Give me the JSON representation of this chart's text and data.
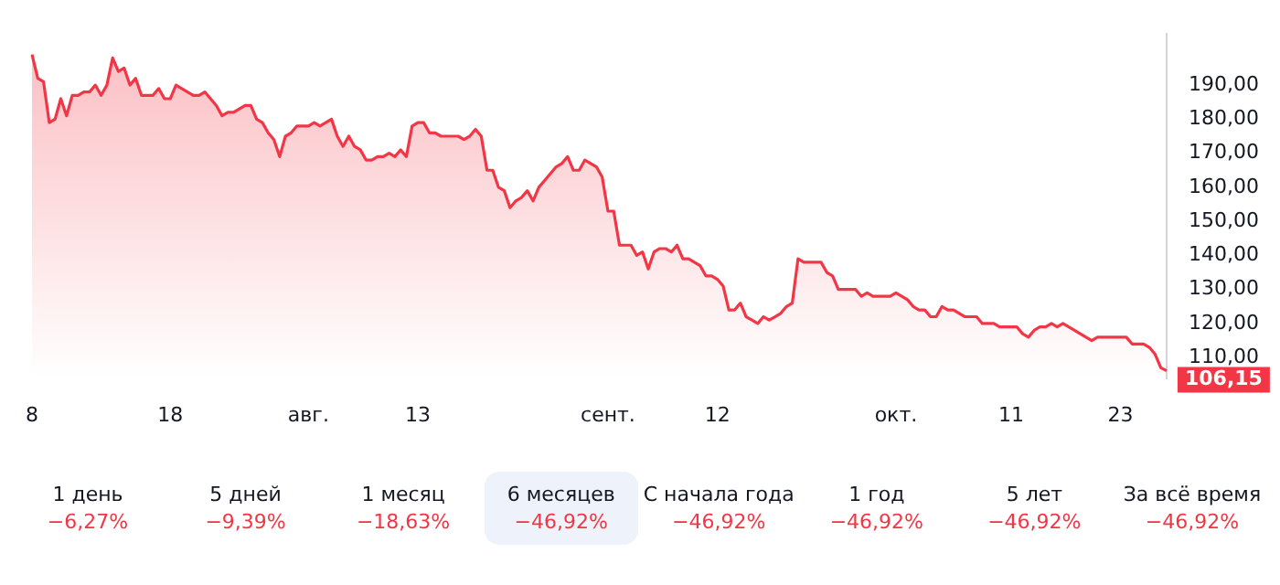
{
  "chart_data": {
    "type": "area",
    "categories": [
      "8",
      null,
      null,
      null,
      null,
      null,
      null,
      null,
      null,
      null,
      null,
      null,
      null,
      null,
      null,
      null,
      null,
      null,
      null,
      null,
      null,
      null,
      null,
      null,
      "18",
      null,
      null,
      null,
      null,
      null,
      null,
      null,
      null,
      null,
      null,
      null,
      null,
      null,
      null,
      null,
      null,
      null,
      null,
      null,
      null,
      null,
      null,
      null,
      "авг.",
      null,
      null,
      null,
      null,
      null,
      null,
      null,
      null,
      null,
      null,
      null,
      null,
      null,
      null,
      null,
      null,
      null,
      null,
      "13",
      null,
      null,
      null,
      null,
      null,
      null,
      null,
      null,
      null,
      null,
      null,
      null,
      null,
      null,
      null,
      null,
      null,
      null,
      null,
      null,
      null,
      null,
      null,
      null,
      null,
      null,
      null,
      null,
      null,
      null,
      null,
      null,
      "сент.",
      null,
      null,
      null,
      null,
      null,
      null,
      null,
      null,
      null,
      null,
      null,
      null,
      null,
      null,
      null,
      null,
      null,
      null,
      "12",
      null,
      null,
      null,
      null,
      null,
      null,
      null,
      null,
      null,
      null,
      null,
      null,
      null,
      null,
      null,
      null,
      null,
      null,
      null,
      null,
      null,
      null,
      null,
      null,
      null,
      null,
      null,
      null,
      null,
      null,
      "окт.",
      null,
      null,
      null,
      null,
      null,
      null,
      null,
      null,
      null,
      null,
      null,
      null,
      null,
      null,
      null,
      null,
      null,
      null,
      null,
      "11",
      null,
      null,
      null,
      null,
      null,
      null,
      null,
      null,
      null,
      null,
      null,
      null,
      null,
      null,
      null,
      null,
      null,
      null,
      "23",
      null,
      null,
      null,
      null,
      null,
      null,
      null,
      null
    ],
    "series": [
      {
        "color": "#f23645",
        "values": [
          199,
          192,
          191,
          179,
          180,
          186,
          181,
          187,
          187,
          188,
          188,
          190,
          187,
          190,
          198,
          194,
          195,
          190,
          192,
          187,
          187,
          187,
          189,
          186,
          186,
          190,
          189,
          188,
          187,
          187,
          188,
          186,
          184,
          181,
          182,
          182,
          183,
          184,
          184,
          180,
          179,
          176,
          174,
          169,
          175,
          176,
          178,
          178,
          178,
          179,
          178,
          179,
          180,
          175,
          172,
          175,
          172,
          171,
          168,
          168,
          169,
          169,
          170,
          169,
          171,
          169,
          178,
          179,
          179,
          176,
          176,
          175,
          175,
          175,
          175,
          174,
          175,
          177,
          175,
          165,
          165,
          160,
          159,
          154,
          156,
          157,
          159,
          156,
          160,
          162,
          164,
          166,
          167,
          169,
          165,
          165,
          168,
          167,
          166,
          163,
          153,
          153,
          143,
          143,
          143,
          140,
          141,
          136,
          141,
          142,
          142,
          141,
          143,
          139,
          139,
          138,
          137,
          134,
          134,
          133,
          131,
          124,
          124,
          126,
          122,
          121,
          120,
          122,
          121,
          122,
          123,
          125,
          126,
          139,
          138,
          138,
          138,
          138,
          135,
          134,
          130,
          130,
          130,
          130,
          128,
          129,
          128,
          128,
          128,
          128,
          129,
          128,
          127,
          125,
          124,
          124,
          122,
          122,
          125,
          124,
          124,
          123,
          122,
          122,
          122,
          120,
          120,
          120,
          119,
          119,
          119,
          119,
          117,
          116,
          118,
          119,
          119,
          120,
          119,
          120,
          119,
          118,
          117,
          116,
          115,
          116,
          116,
          116,
          116,
          116,
          116,
          114,
          114,
          114,
          113,
          111,
          107,
          106.15
        ],
        "value_labels": [
          null,
          null,
          null,
          null,
          null,
          null,
          null,
          null,
          null,
          null,
          null,
          null,
          null,
          null,
          null,
          null,
          null,
          null,
          null,
          null,
          null,
          null,
          null,
          null,
          null,
          null,
          null,
          null,
          null,
          null,
          null,
          null,
          null,
          null,
          null,
          null,
          null,
          null,
          null,
          null,
          null,
          null,
          null,
          null,
          null,
          null,
          null,
          null,
          null,
          null,
          null,
          null,
          null,
          null,
          null,
          null,
          null,
          null,
          null,
          null,
          null,
          null,
          null,
          null,
          null,
          null,
          null,
          null,
          null,
          null,
          null,
          null,
          null,
          null,
          null,
          null,
          null,
          null,
          null,
          null,
          null,
          null,
          null,
          null,
          null,
          null,
          null,
          null,
          null,
          null,
          null,
          null,
          null,
          null,
          null,
          null,
          null,
          null,
          null,
          null,
          null,
          null,
          null,
          null,
          null,
          null,
          null,
          null,
          null,
          null,
          null,
          null,
          null,
          null,
          null,
          null,
          null,
          null,
          null,
          null,
          null,
          null,
          null,
          null,
          null,
          null,
          null,
          null,
          null,
          null,
          null,
          null,
          null,
          null,
          null,
          null,
          null,
          null,
          null,
          null,
          null,
          null,
          null,
          null,
          null,
          null,
          null,
          null,
          null,
          null,
          null,
          null,
          null,
          null,
          null,
          null,
          null,
          null,
          null,
          null,
          null,
          null,
          null,
          null,
          null,
          null,
          null,
          null,
          null,
          null,
          null,
          null,
          null,
          null,
          null,
          null,
          null,
          null,
          null,
          null,
          null,
          null,
          null,
          null,
          null,
          null,
          null,
          null,
          null,
          null,
          null,
          null,
          null,
          null,
          null,
          null,
          null,
          "106,15"
        ]
      }
    ],
    "yticks": [
      {
        "value": 110,
        "label": "110,00"
      },
      {
        "value": 120,
        "label": "120,00"
      },
      {
        "value": 130,
        "label": "130,00"
      },
      {
        "value": 140,
        "label": "140,00"
      },
      {
        "value": 150,
        "label": "150,00"
      },
      {
        "value": 160,
        "label": "160,00"
      },
      {
        "value": 170,
        "label": "170,00"
      },
      {
        "value": 180,
        "label": "180,00"
      },
      {
        "value": 190,
        "label": "190,00"
      }
    ],
    "ylim": [
      104,
      205
    ],
    "grid": false,
    "legend": false,
    "marker": "none",
    "line_style": "solid",
    "annotations": [
      "1 день",
      "−6,27%",
      "5 дней",
      "−9,39%",
      "1 месяц",
      "−18,63%",
      "6 месяцев",
      "−46,92%",
      "С начала года",
      "−46,92%",
      "1 год",
      "−46,92%",
      "5 лет",
      "−46,92%",
      "За всё время",
      "−46,92%"
    ]
  }
}
